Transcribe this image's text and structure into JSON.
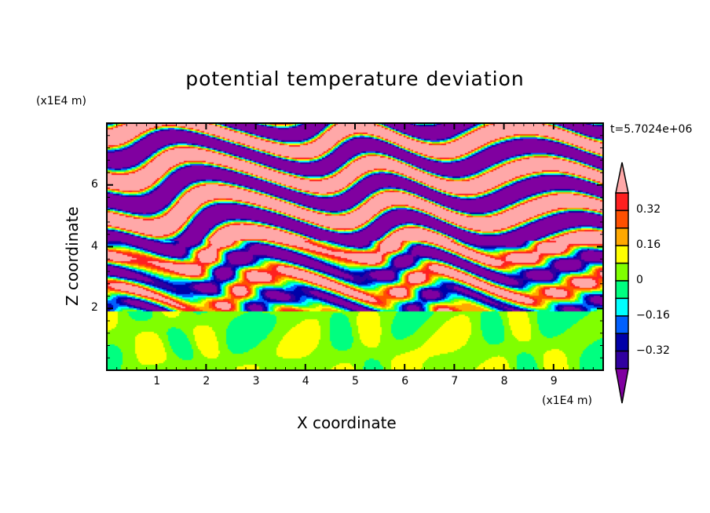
{
  "chart_data": {
    "type": "heatmap",
    "subtype": "filled-contour",
    "title": "potential temperature deviation",
    "xlabel": "X coordinate",
    "ylabel": "Z coordinate",
    "x_unit": "(x1E4 m)",
    "y_unit": "(x1E4 m)",
    "time_label": "t=5.7024e+06",
    "xlim": [
      0,
      10
    ],
    "ylim": [
      0,
      8
    ],
    "xticks": [
      "1",
      "2",
      "3",
      "4",
      "5",
      "6",
      "7",
      "8",
      "9"
    ],
    "xtick_values": [
      1,
      2,
      3,
      4,
      5,
      6,
      7,
      8,
      9
    ],
    "yticks": [
      "2",
      "4",
      "6"
    ],
    "ytick_values": [
      2,
      4,
      6
    ],
    "colorbar": {
      "levels": [
        0.4,
        0.32,
        0.24,
        0.16,
        0.08,
        0,
        -0.08,
        -0.16,
        -0.24,
        -0.32,
        -0.4
      ],
      "labels": [
        "0.32",
        "0.16",
        "0",
        "−0.16",
        "−0.32"
      ],
      "label_values": [
        0.32,
        0.16,
        0,
        -0.16,
        -0.32
      ],
      "over_color": "#ffa8a8",
      "under_color": "#8000a0",
      "colors": [
        "#ff2020",
        "#ff5000",
        "#ffa800",
        "#ffff00",
        "#80ff00",
        "#00ff80",
        "#00ffff",
        "#0060ff",
        "#0000a8",
        "#3000a0"
      ]
    },
    "description_regions": [
      {
        "z_range": [
          0,
          1.95
        ],
        "dominant_values": "0 to 0.08 (weak mixed layer)"
      },
      {
        "z_range": [
          1.95,
          4.5
        ],
        "dominant_values": "mixed -0.4 to 0.4, turbulent layers"
      },
      {
        "z_range": [
          4.5,
          8
        ],
        "dominant_values": "alternating bands > 0.4 and < -0.4"
      }
    ]
  }
}
